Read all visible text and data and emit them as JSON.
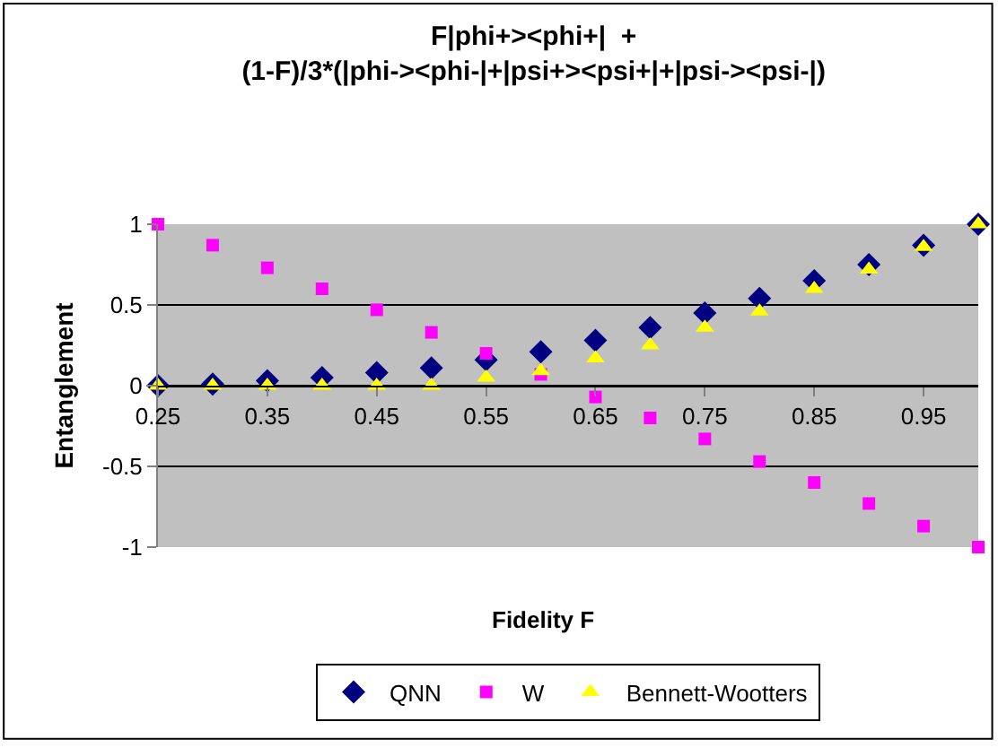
{
  "chart_data": {
    "type": "scatter",
    "title": "F|phi+><phi+|  +\n(1-F)/3*(|phi-><phi-|+|psi+><psi+|+|psi-><psi-|)",
    "xlabel": "Fidelity F",
    "ylabel": "Entanglement",
    "x": [
      0.25,
      0.3,
      0.35,
      0.4,
      0.45,
      0.5,
      0.55,
      0.6,
      0.65,
      0.7,
      0.75,
      0.8,
      0.85,
      0.9,
      0.95,
      1.0
    ],
    "series": [
      {
        "name": "QNN",
        "color": "#000080",
        "marker": "diamond",
        "values": [
          0,
          0.01,
          0.03,
          0.05,
          0.08,
          0.11,
          0.16,
          0.21,
          0.28,
          0.36,
          0.45,
          0.54,
          0.65,
          0.75,
          0.87,
          1
        ]
      },
      {
        "name": "W",
        "color": "#ff00ff",
        "marker": "square",
        "values": [
          1,
          0.87,
          0.73,
          0.6,
          0.47,
          0.33,
          0.2,
          0.07,
          -0.07,
          -0.2,
          -0.33,
          -0.47,
          -0.6,
          -0.73,
          -0.87,
          -1
        ]
      },
      {
        "name": "Bennett-Wootters",
        "color": "#ffff00",
        "marker": "triangle",
        "values": [
          0,
          0,
          0,
          0,
          0,
          0,
          0.05,
          0.09,
          0.17,
          0.25,
          0.36,
          0.46,
          0.6,
          0.72,
          0.86,
          1
        ]
      }
    ],
    "xlim": [
      0.25,
      1.0
    ],
    "xticks": [
      0.25,
      0.35,
      0.45,
      0.55,
      0.65,
      0.75,
      0.85,
      0.95
    ],
    "ylim": [
      -1,
      1
    ],
    "yticks": [
      -1,
      -0.5,
      0,
      0.5,
      1
    ],
    "grid": "y",
    "legend": "bottom"
  }
}
